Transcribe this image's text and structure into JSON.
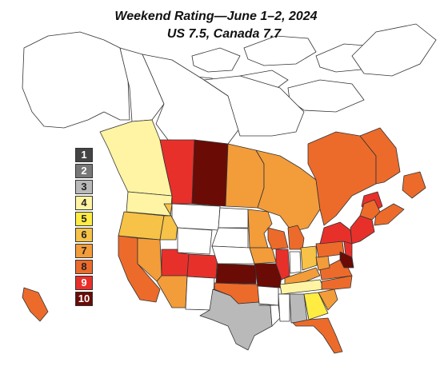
{
  "title": "Weekend Rating—June 1–2, 2024",
  "subtitle": "US 7.5, Canada 7.7",
  "legend": [
    {
      "label": "1",
      "color": "#444444",
      "text_color": "#ffffff"
    },
    {
      "label": "2",
      "color": "#777777",
      "text_color": "#ffffff"
    },
    {
      "label": "3",
      "color": "#b9b9b9",
      "text_color": "#222222"
    },
    {
      "label": "4",
      "color": "#fff4a3",
      "text_color": "#222222"
    },
    {
      "label": "5",
      "color": "#ffec43",
      "text_color": "#222222"
    },
    {
      "label": "6",
      "color": "#f6c247",
      "text_color": "#222222"
    },
    {
      "label": "7",
      "color": "#f39c3a",
      "text_color": "#222222"
    },
    {
      "label": "8",
      "color": "#ec6b2b",
      "text_color": "#222222"
    },
    {
      "label": "9",
      "color": "#e8302b",
      "text_color": "#ffffff"
    },
    {
      "label": "10",
      "color": "#6a0b06",
      "text_color": "#ffffff"
    }
  ],
  "regions": [
    {
      "name": "alaska",
      "rating": 0
    },
    {
      "name": "yukon",
      "rating": 0
    },
    {
      "name": "northwest-territories",
      "rating": 0
    },
    {
      "name": "nunavut",
      "rating": 0
    },
    {
      "name": "british-columbia",
      "rating": 4
    },
    {
      "name": "alberta",
      "rating": 9
    },
    {
      "name": "saskatchewan",
      "rating": 10
    },
    {
      "name": "manitoba",
      "rating": 7
    },
    {
      "name": "ontario",
      "rating": 7
    },
    {
      "name": "quebec",
      "rating": 8
    },
    {
      "name": "labrador",
      "rating": 8
    },
    {
      "name": "newfoundland",
      "rating": 8
    },
    {
      "name": "new-brunswick",
      "rating": 9
    },
    {
      "name": "nova-scotia",
      "rating": 8
    },
    {
      "name": "washington",
      "rating": 4
    },
    {
      "name": "oregon",
      "rating": 6
    },
    {
      "name": "california",
      "rating": 8
    },
    {
      "name": "nevada",
      "rating": 7
    },
    {
      "name": "idaho",
      "rating": 6
    },
    {
      "name": "montana",
      "rating": 0
    },
    {
      "name": "wyoming",
      "rating": 0
    },
    {
      "name": "utah",
      "rating": 9
    },
    {
      "name": "arizona",
      "rating": 7
    },
    {
      "name": "colorado",
      "rating": 9
    },
    {
      "name": "new-mexico",
      "rating": 0
    },
    {
      "name": "north-dakota",
      "rating": 0
    },
    {
      "name": "south-dakota",
      "rating": 0
    },
    {
      "name": "nebraska",
      "rating": 0
    },
    {
      "name": "kansas",
      "rating": 10
    },
    {
      "name": "oklahoma",
      "rating": 8
    },
    {
      "name": "texas",
      "rating": 3
    },
    {
      "name": "minnesota",
      "rating": 7
    },
    {
      "name": "iowa",
      "rating": 7
    },
    {
      "name": "missouri",
      "rating": 10
    },
    {
      "name": "arkansas",
      "rating": 0
    },
    {
      "name": "louisiana",
      "rating": 0
    },
    {
      "name": "wisconsin",
      "rating": 8
    },
    {
      "name": "illinois",
      "rating": 9
    },
    {
      "name": "michigan",
      "rating": 8
    },
    {
      "name": "indiana",
      "rating": 0
    },
    {
      "name": "ohio",
      "rating": 6
    },
    {
      "name": "kentucky",
      "rating": 7
    },
    {
      "name": "tennessee",
      "rating": 4
    },
    {
      "name": "mississippi",
      "rating": 0
    },
    {
      "name": "alabama",
      "rating": 3
    },
    {
      "name": "georgia",
      "rating": 5
    },
    {
      "name": "florida",
      "rating": 8
    },
    {
      "name": "south-carolina",
      "rating": 7
    },
    {
      "name": "north-carolina",
      "rating": 8
    },
    {
      "name": "virginia",
      "rating": 8
    },
    {
      "name": "west-virginia",
      "rating": 7
    },
    {
      "name": "pennsylvania",
      "rating": 8
    },
    {
      "name": "new-york",
      "rating": 9
    },
    {
      "name": "new-jersey",
      "rating": 9
    },
    {
      "name": "maryland-delaware",
      "rating": 10
    },
    {
      "name": "new-england",
      "rating": 9
    },
    {
      "name": "maine",
      "rating": 8
    },
    {
      "name": "hawaii",
      "rating": 8
    }
  ]
}
